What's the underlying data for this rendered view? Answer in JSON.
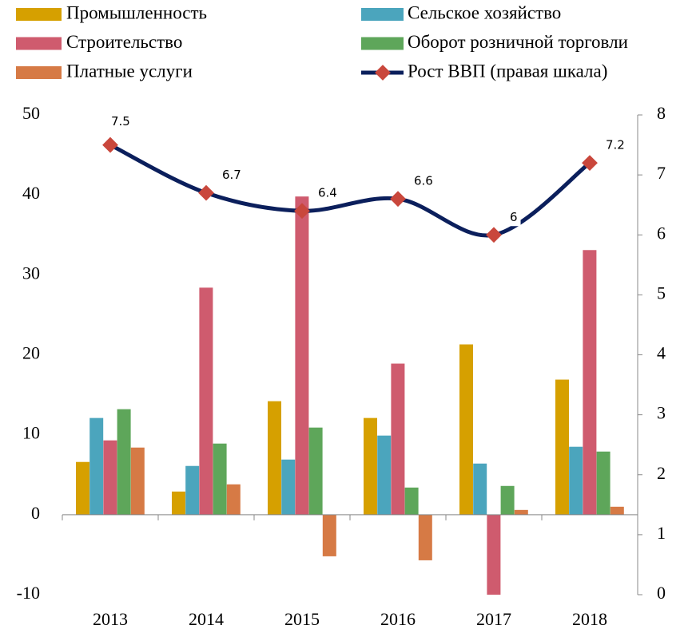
{
  "chart_data": {
    "type": "bar",
    "categories": [
      "2013",
      "2014",
      "2015",
      "2016",
      "2017",
      "2018"
    ],
    "series": [
      {
        "name": "Промышленность",
        "color": "#d6a000",
        "values": [
          6.6,
          2.9,
          14.2,
          12.1,
          21.3,
          16.9
        ]
      },
      {
        "name": "Сельское хозяйство",
        "color": "#4ba5bd",
        "values": [
          12.1,
          6.1,
          6.9,
          9.9,
          6.4,
          8.5
        ]
      },
      {
        "name": "Строительство",
        "color": "#cf5b6e",
        "values": [
          9.3,
          28.4,
          39.8,
          18.9,
          -10,
          33.1
        ]
      },
      {
        "name": "Оборот розничной торговли",
        "color": "#5ea65a",
        "values": [
          13.2,
          8.9,
          10.9,
          3.4,
          3.6,
          7.9
        ]
      },
      {
        "name": "Платные услуги",
        "color": "#d67a45",
        "values": [
          8.4,
          3.8,
          -5.2,
          -5.7,
          0.6,
          1.0
        ]
      },
      {
        "name": "Рост ВВП (правая шкала)",
        "color": "#0b1f5c",
        "marker_color": "#c9473c",
        "type": "line",
        "axis": "y2",
        "values": [
          7.5,
          6.7,
          6.4,
          6.6,
          6,
          7.2
        ]
      }
    ],
    "ylim": [
      -10,
      50
    ],
    "yticks": [
      -10,
      0,
      10,
      20,
      30,
      40,
      50
    ],
    "y2lim": [
      0,
      8
    ],
    "y2ticks": [
      0,
      1,
      2,
      3,
      4,
      5,
      6,
      7,
      8
    ],
    "legend": "top"
  }
}
